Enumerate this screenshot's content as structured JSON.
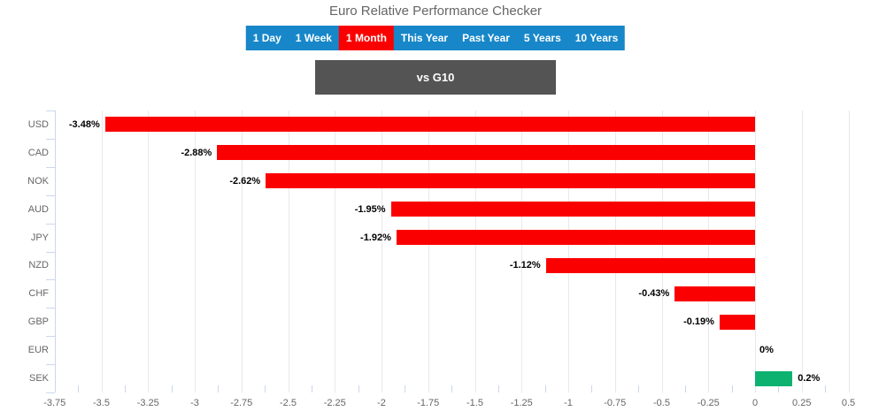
{
  "header": {
    "title": "Euro Relative Performance Checker"
  },
  "toolbar": {
    "bg_color": "#1787c9",
    "selected_color": "#fb0000",
    "items": [
      {
        "label": "1 Day",
        "selected": false
      },
      {
        "label": "1 Week",
        "selected": false
      },
      {
        "label": "1 Month",
        "selected": true
      },
      {
        "label": "This Year",
        "selected": false
      },
      {
        "label": "Past Year",
        "selected": false
      },
      {
        "label": "5 Years",
        "selected": false
      },
      {
        "label": "10 Years",
        "selected": false
      }
    ]
  },
  "group_selector": {
    "label": "vs G10",
    "bg_color": "#545454"
  },
  "chart_data": {
    "type": "bar",
    "orientation": "horizontal",
    "title": "Euro Relative Performance Checker",
    "categories": [
      "USD",
      "CAD",
      "NOK",
      "AUD",
      "JPY",
      "NZD",
      "CHF",
      "GBP",
      "EUR",
      "SEK"
    ],
    "values": [
      -3.48,
      -2.88,
      -2.62,
      -1.95,
      -1.92,
      -1.12,
      -0.43,
      -0.19,
      0,
      0.2
    ],
    "data_labels": [
      "-3.48%",
      "-2.88%",
      "-2.62%",
      "-1.95%",
      "-1.92%",
      "-1.12%",
      "-0.43%",
      "-0.19%",
      "0%",
      "0.2%"
    ],
    "xlim": [
      -3.75,
      0.5
    ],
    "tick_step": 0.25,
    "x_tick_labels": [
      "-3.75",
      "-3.5",
      "-3.25",
      "-3",
      "-2.75",
      "-2.5",
      "-2.25",
      "-2",
      "-1.75",
      "-1.5",
      "-1.25",
      "-1",
      "-0.75",
      "-0.5",
      "-0.25",
      "0",
      "0.25",
      "0.5"
    ],
    "negative_color": "#fb0000",
    "positive_color": "#0db271",
    "grid": true,
    "legend": "none",
    "unit": "%"
  }
}
